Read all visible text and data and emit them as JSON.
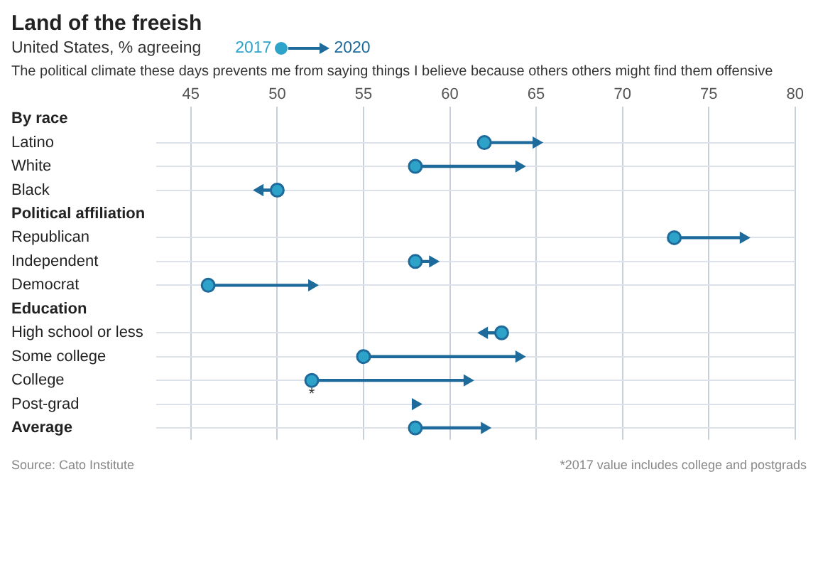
{
  "chart_data": {
    "type": "scatter",
    "title": "Land of the freeish",
    "subtitle": "United States, % agreeing",
    "categories": [
      "By race",
      "Latino",
      "White",
      "Black",
      "Political affiliation",
      "Republican",
      "Independent",
      "Democrat",
      "Education",
      "High school or less",
      "Some college",
      "College",
      "Post-grad",
      "Average"
    ],
    "series": [
      {
        "name": "2017",
        "color": "#2ea3c9",
        "marker": "circle",
        "values": [
          null,
          62,
          58,
          50,
          null,
          73,
          58,
          46,
          null,
          63,
          55,
          52,
          null,
          58
        ]
      },
      {
        "name": "2020",
        "color": "#1e6a9b",
        "marker": "triangle",
        "values": [
          null,
          65,
          64,
          49,
          null,
          77,
          59,
          52,
          null,
          62,
          64,
          61,
          58,
          62
        ]
      }
    ],
    "orientation": "horizontal",
    "xlim": [
      43,
      80
    ],
    "xticks": [
      45,
      50,
      55,
      60,
      65,
      70,
      75,
      80
    ],
    "grid": true,
    "legend": "top left",
    "annotations": [
      "The political climate these days prevents me from saying things I believe because others others might find them offensive",
      {
        "text": "*",
        "x": 52,
        "y": "College"
      },
      "Source: Cato Institute",
      "*2017 value includes college and postgrads"
    ]
  }
}
